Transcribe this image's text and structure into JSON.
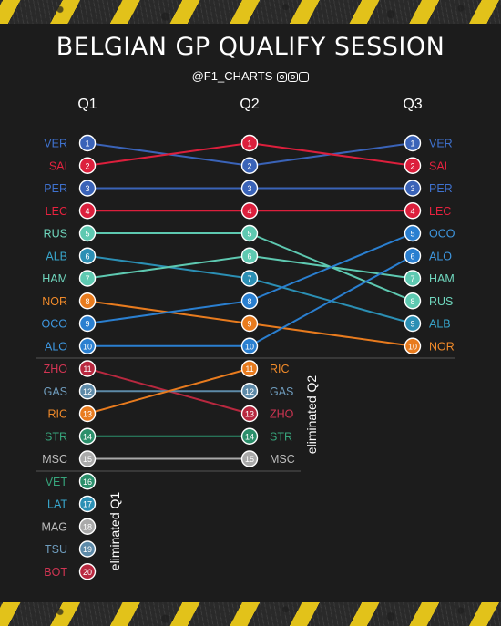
{
  "title": "BELGIAN GP QUALIFY SESSION",
  "handle": "@F1_CHARTS",
  "social_icons": [
    "instagram-icon",
    "threads-icon",
    "facebook-icon"
  ],
  "chart_data": {
    "type": "bump",
    "stages": [
      "Q1",
      "Q2",
      "Q3"
    ],
    "rankings": {
      "Q1": [
        "VER",
        "SAI",
        "PER",
        "LEC",
        "RUS",
        "ALB",
        "HAM",
        "NOR",
        "OCO",
        "ALO",
        "ZHO",
        "GAS",
        "RIC",
        "STR",
        "MSC",
        "VET",
        "LAT",
        "MAG",
        "TSU",
        "BOT"
      ],
      "Q2": [
        "SAI",
        "VER",
        "PER",
        "LEC",
        "RUS",
        "HAM",
        "ALB",
        "OCO",
        "NOR",
        "ALO",
        "RIC",
        "GAS",
        "ZHO",
        "STR",
        "MSC"
      ],
      "Q3": [
        "VER",
        "SAI",
        "PER",
        "LEC",
        "OCO",
        "ALO",
        "HAM",
        "RUS",
        "ALB",
        "NOR"
      ]
    },
    "eliminated_labels": [
      "eliminated Q1",
      "eliminated Q2"
    ],
    "driver_colors": {
      "VER": "#3a63b8",
      "PER": "#3a63b8",
      "SAI": "#dc1f3c",
      "LEC": "#dc1f3c",
      "RUS": "#5ec9b1",
      "HAM": "#5ec9b1",
      "ALB": "#2b8fb4",
      "LAT": "#2b8fb4",
      "NOR": "#e87b1e",
      "RIC": "#e87b1e",
      "OCO": "#2a7fd0",
      "ALO": "#2a7fd0",
      "ZHO": "#b8283f",
      "BOT": "#b8283f",
      "GAS": "#5d8aa8",
      "TSU": "#5d8aa8",
      "STR": "#2b8f6b",
      "VET": "#2b8f6b",
      "MSC": "#a9a9a9",
      "MAG": "#a9a9a9"
    },
    "label_colors": {
      "VER": "#3f72cf",
      "PER": "#3f72cf",
      "SAI": "#e8223f",
      "LEC": "#e8223f",
      "RUS": "#6fd6bd",
      "HAM": "#6fd6bd",
      "ALB": "#38a6cc",
      "LAT": "#38a6cc",
      "NOR": "#f08a2a",
      "RIC": "#f08a2a",
      "OCO": "#3e97e0",
      "ALO": "#3e97e0",
      "ZHO": "#d13553",
      "BOT": "#d13553",
      "GAS": "#6f9cbd",
      "TSU": "#6f9cbd",
      "STR": "#37a57c",
      "VET": "#37a57c",
      "MSC": "#bdbdbd",
      "MAG": "#bdbdbd"
    }
  }
}
